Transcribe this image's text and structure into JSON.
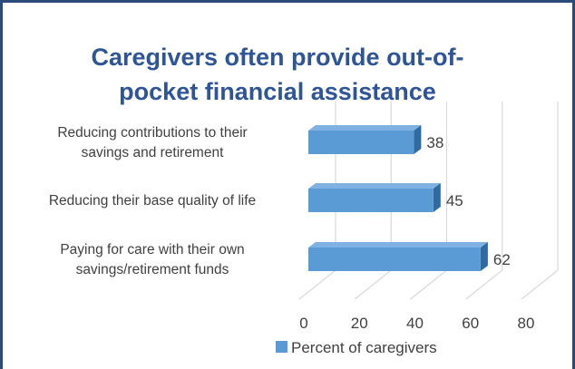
{
  "chart_data": {
    "type": "bar",
    "orientation": "horizontal",
    "style": "3d",
    "title": "Caregivers often provide out-of-pocket financial assistance",
    "title_lines": [
      "Caregivers often provide out-of-",
      "pocket financial assistance"
    ],
    "categories": [
      {
        "lines": [
          "Reducing contributions to their",
          "savings and retirement"
        ]
      },
      {
        "lines": [
          "Reducing their base quality of life"
        ]
      },
      {
        "lines": [
          "Paying for care with their own",
          "savings/retirement funds"
        ]
      }
    ],
    "series": [
      {
        "name": "Percent of caregivers",
        "values": [
          38,
          45,
          62
        ]
      }
    ],
    "xlim": [
      0,
      80
    ],
    "xticks": [
      "0",
      "20",
      "40",
      "60",
      "80"
    ],
    "grid": true,
    "legend_position": "bottom",
    "colors": {
      "bar_front": "#5b9bd5",
      "bar_top": "#7fb1e2",
      "bar_side": "#2f6aa3",
      "grid": "#d9d9d9",
      "title": "#2e5597"
    }
  }
}
